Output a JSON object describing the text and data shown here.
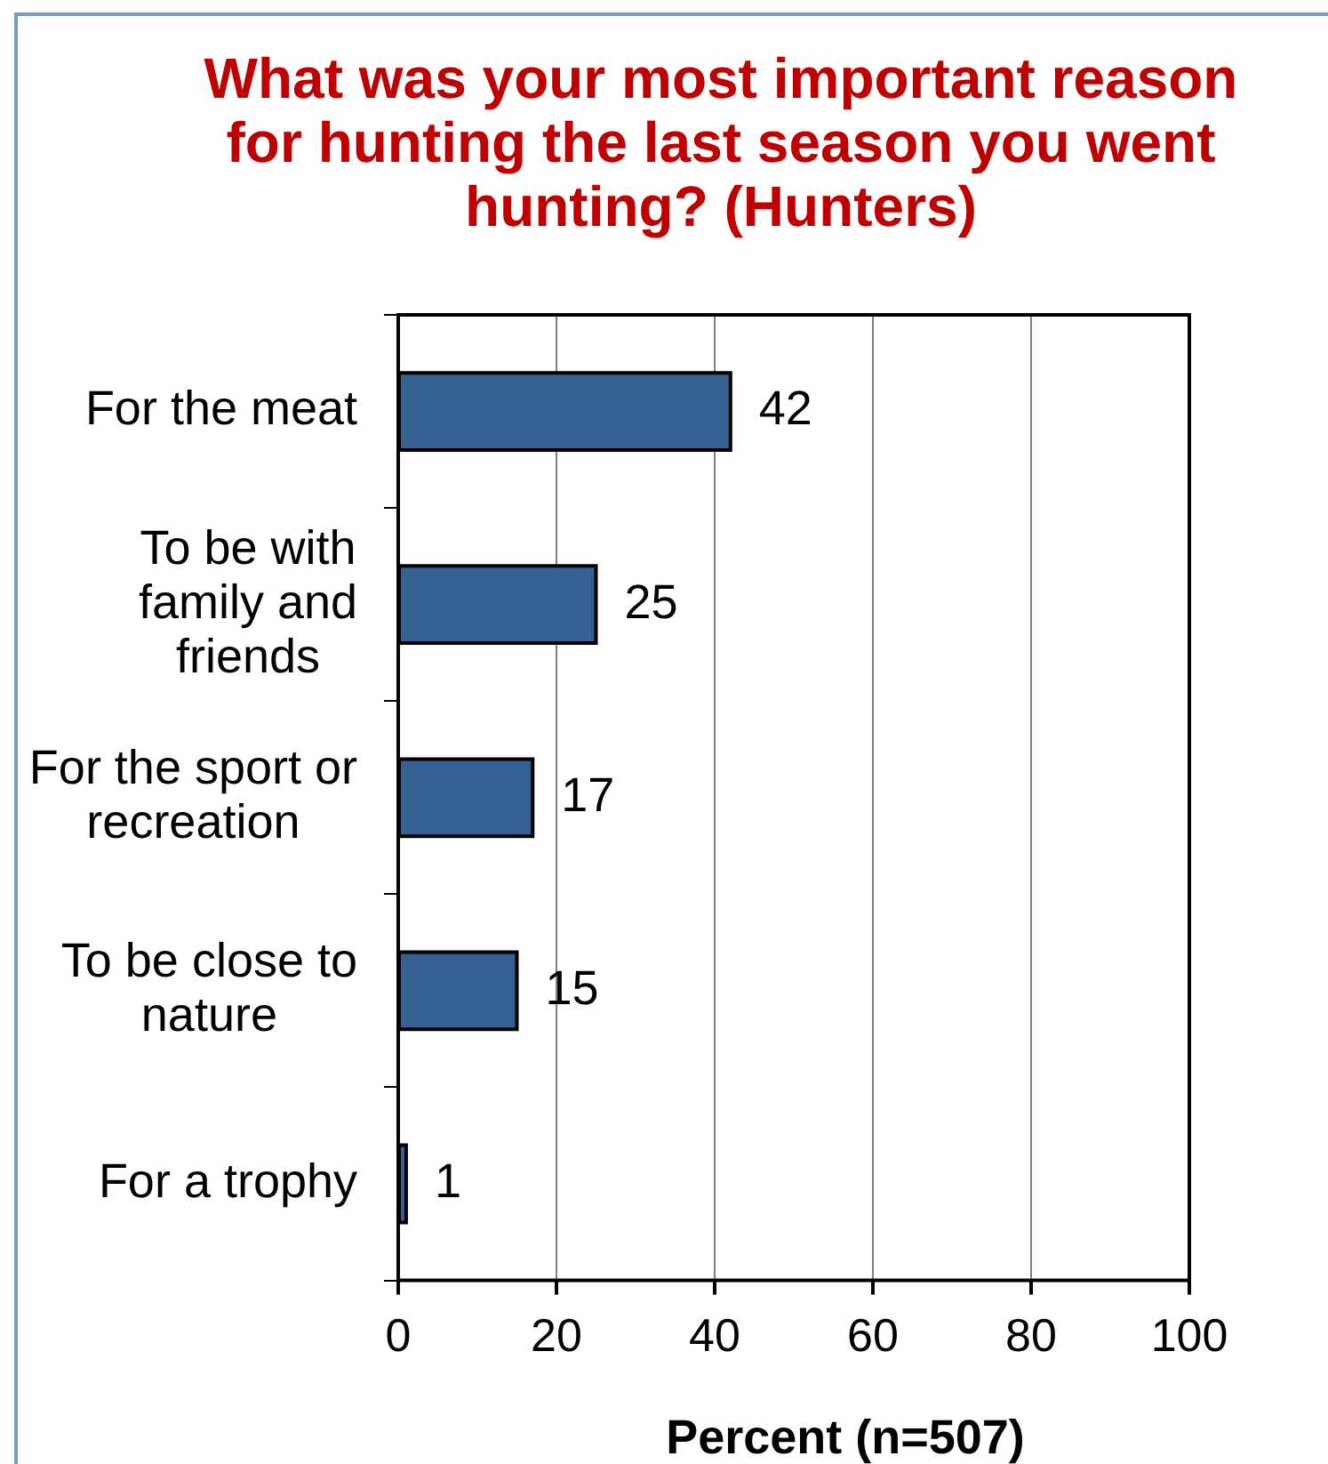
{
  "chart_data": {
    "type": "bar",
    "orientation": "horizontal",
    "title": "What was your most important reason for hunting the last season you went hunting? (Hunters)",
    "xlabel": "Percent (n=507)",
    "categories": [
      "For the meat",
      "To be with family and friends",
      "For the sport or recreation",
      "To be close to nature",
      "For a trophy"
    ],
    "values": [
      42,
      25,
      17,
      15,
      1
    ],
    "color": "#376092",
    "xlim": [
      0,
      100
    ],
    "xticks": [
      0,
      20,
      40,
      60,
      80,
      100
    ],
    "grid": "x",
    "data_labels": true
  }
}
